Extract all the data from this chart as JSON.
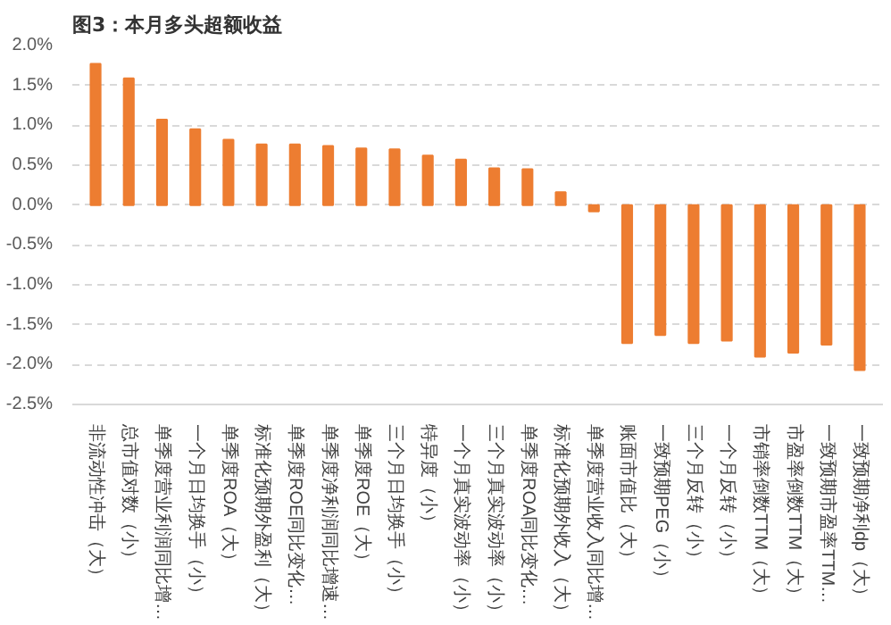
{
  "chart_data": {
    "type": "bar",
    "title": "图3：本月多头超额收益",
    "categories": [
      "非流动性冲击（大）",
      "总市值对数（小）",
      "单季度营业利润同比增…",
      "一个月日均换手（小）",
      "单季度ROA（大）",
      "标准化预期外盈利（大）",
      "单季度ROE同比变化…",
      "单季度净利润同比增速…",
      "单季度ROE（大）",
      "三个月日均换手（小）",
      "特异度（小）",
      "一个月真实波动率（小）",
      "三个月真实波动率（小）",
      "单季度ROA同比变化…",
      "标准化预期外收入（大）",
      "单季度营业收入同比增…",
      "账面市值比（大）",
      "一致预期PEG（小）",
      "三个月反转（小）",
      "一个月反转（小）",
      "市销率倒数TTM（大）",
      "市盈率倒数TTM（大）",
      "一致预期市盈率TTM…",
      "一致预期净利dp（大）"
    ],
    "values": [
      1.77,
      1.59,
      1.07,
      0.95,
      0.82,
      0.76,
      0.76,
      0.74,
      0.71,
      0.7,
      0.62,
      0.57,
      0.46,
      0.45,
      0.16,
      -0.08,
      -1.73,
      -1.63,
      -1.73,
      -1.7,
      -1.9,
      -1.85,
      -1.75,
      -2.07
    ],
    "color": "#ed7d31",
    "ylim": [
      -2.5,
      2.0
    ],
    "yticks": [
      {
        "value": -2.5,
        "label": "-2.5%"
      },
      {
        "value": -2.0,
        "label": "-2.0%"
      },
      {
        "value": -1.5,
        "label": "-1.5%"
      },
      {
        "value": -1.0,
        "label": "-1.0%"
      },
      {
        "value": -0.5,
        "label": "-0.5%"
      },
      {
        "value": 0.0,
        "label": "0.0%"
      },
      {
        "value": 0.5,
        "label": "0.5%"
      },
      {
        "value": 1.0,
        "label": "1.0%"
      },
      {
        "value": 1.5,
        "label": "1.5%"
      },
      {
        "value": 2.0,
        "label": "2.0%"
      }
    ],
    "grid": "y"
  }
}
